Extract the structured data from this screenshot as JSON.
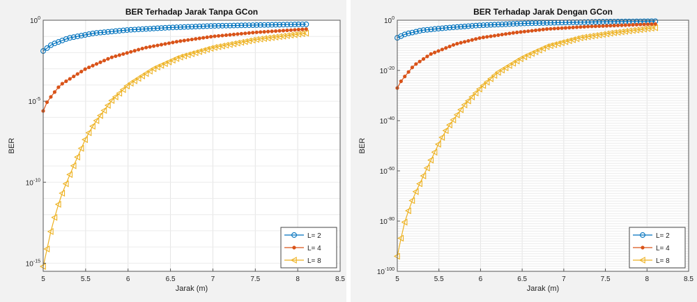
{
  "chart_data": [
    {
      "type": "line",
      "title": "BER Terhadap Jarak Tanpa GCon",
      "xlabel": "Jarak (m)",
      "ylabel": "BER",
      "xlim": [
        5,
        8.5
      ],
      "yscale": "log",
      "ylim_exp": [
        -15.5,
        0
      ],
      "x_ticks": [
        "5",
        "5.5",
        "6",
        "6.5",
        "7",
        "7.5",
        "8",
        "8.5"
      ],
      "y_ticks": [
        {
          "base": "10",
          "exp": "0",
          "value": 0
        },
        {
          "base": "10",
          "exp": "-5",
          "value": -5
        },
        {
          "base": "10",
          "exp": "-10",
          "value": -10
        },
        {
          "base": "10",
          "exp": "-15",
          "value": -15
        }
      ],
      "grid": true,
      "legend_position": "bottom-right",
      "series": [
        {
          "name": "L= 2",
          "color": "#0072bd",
          "marker": "circle",
          "anchors": [
            [
              5.0,
              -1.9
            ],
            [
              5.1,
              -1.5
            ],
            [
              5.3,
              -1.1
            ],
            [
              5.6,
              -0.8
            ],
            [
              6.0,
              -0.6
            ],
            [
              6.5,
              -0.45
            ],
            [
              7.0,
              -0.35
            ],
            [
              7.5,
              -0.3
            ],
            [
              8.1,
              -0.25
            ]
          ]
        },
        {
          "name": "L= 4",
          "color": "#d95319",
          "marker": "star",
          "anchors": [
            [
              5.0,
              -5.6
            ],
            [
              5.05,
              -5.0
            ],
            [
              5.2,
              -4.0
            ],
            [
              5.5,
              -3.0
            ],
            [
              5.8,
              -2.3
            ],
            [
              6.2,
              -1.7
            ],
            [
              6.6,
              -1.3
            ],
            [
              7.0,
              -1.0
            ],
            [
              7.5,
              -0.75
            ],
            [
              8.1,
              -0.55
            ]
          ]
        },
        {
          "name": "L= 8",
          "color": "#edb120",
          "marker": "triangle-left",
          "anchors": [
            [
              5.0,
              -15.2
            ],
            [
              5.05,
              -14.0
            ],
            [
              5.1,
              -12.8
            ],
            [
              5.2,
              -11.0
            ],
            [
              5.3,
              -9.7
            ],
            [
              5.4,
              -8.5
            ],
            [
              5.5,
              -7.3
            ],
            [
              5.6,
              -6.4
            ],
            [
              5.8,
              -5.0
            ],
            [
              6.0,
              -4.0
            ],
            [
              6.3,
              -3.0
            ],
            [
              6.6,
              -2.3
            ],
            [
              7.0,
              -1.7
            ],
            [
              7.5,
              -1.2
            ],
            [
              8.1,
              -0.8
            ]
          ]
        }
      ]
    },
    {
      "type": "line",
      "title": "BER Terhadap Jarak Dengan GCon",
      "xlabel": "Jarak (m)",
      "ylabel": "BER",
      "xlim": [
        5,
        8.5
      ],
      "yscale": "log",
      "ylim_exp": [
        -100,
        0
      ],
      "x_ticks": [
        "5",
        "5.5",
        "6",
        "6.5",
        "7",
        "7.5",
        "8",
        "8.5"
      ],
      "y_ticks": [
        {
          "base": "10",
          "exp": "0",
          "value": 0
        },
        {
          "base": "10",
          "exp": "-20",
          "value": -20
        },
        {
          "base": "10",
          "exp": "-40",
          "value": -40
        },
        {
          "base": "10",
          "exp": "-60",
          "value": -60
        },
        {
          "base": "10",
          "exp": "-80",
          "value": -80
        },
        {
          "base": "10",
          "exp": "-100",
          "value": -100
        }
      ],
      "grid": true,
      "legend_position": "bottom-right",
      "series": [
        {
          "name": "L= 2",
          "color": "#0072bd",
          "marker": "circle",
          "anchors": [
            [
              5.0,
              -7.0
            ],
            [
              5.1,
              -5.5
            ],
            [
              5.3,
              -4.0
            ],
            [
              5.6,
              -3.0
            ],
            [
              6.0,
              -2.0
            ],
            [
              6.5,
              -1.3
            ],
            [
              7.0,
              -0.9
            ],
            [
              7.5,
              -0.6
            ],
            [
              8.1,
              -0.4
            ]
          ]
        },
        {
          "name": "L= 4",
          "color": "#d95319",
          "marker": "star",
          "anchors": [
            [
              5.0,
              -27.0
            ],
            [
              5.05,
              -24.0
            ],
            [
              5.2,
              -18.0
            ],
            [
              5.4,
              -13.5
            ],
            [
              5.7,
              -9.5
            ],
            [
              6.0,
              -7.0
            ],
            [
              6.4,
              -5.0
            ],
            [
              6.8,
              -3.5
            ],
            [
              7.3,
              -2.5
            ],
            [
              8.1,
              -1.5
            ]
          ]
        },
        {
          "name": "L= 8",
          "color": "#edb120",
          "marker": "triangle-left",
          "anchors": [
            [
              5.0,
              -94.0
            ],
            [
              5.05,
              -86.0
            ],
            [
              5.1,
              -79.0
            ],
            [
              5.2,
              -70.0
            ],
            [
              5.3,
              -63.0
            ],
            [
              5.4,
              -56.0
            ],
            [
              5.5,
              -49.0
            ],
            [
              5.6,
              -43.0
            ],
            [
              5.8,
              -34.0
            ],
            [
              6.0,
              -27.0
            ],
            [
              6.2,
              -21.0
            ],
            [
              6.5,
              -15.0
            ],
            [
              6.8,
              -10.5
            ],
            [
              7.2,
              -7.0
            ],
            [
              7.6,
              -5.0
            ],
            [
              8.1,
              -3.0
            ]
          ]
        }
      ]
    }
  ]
}
